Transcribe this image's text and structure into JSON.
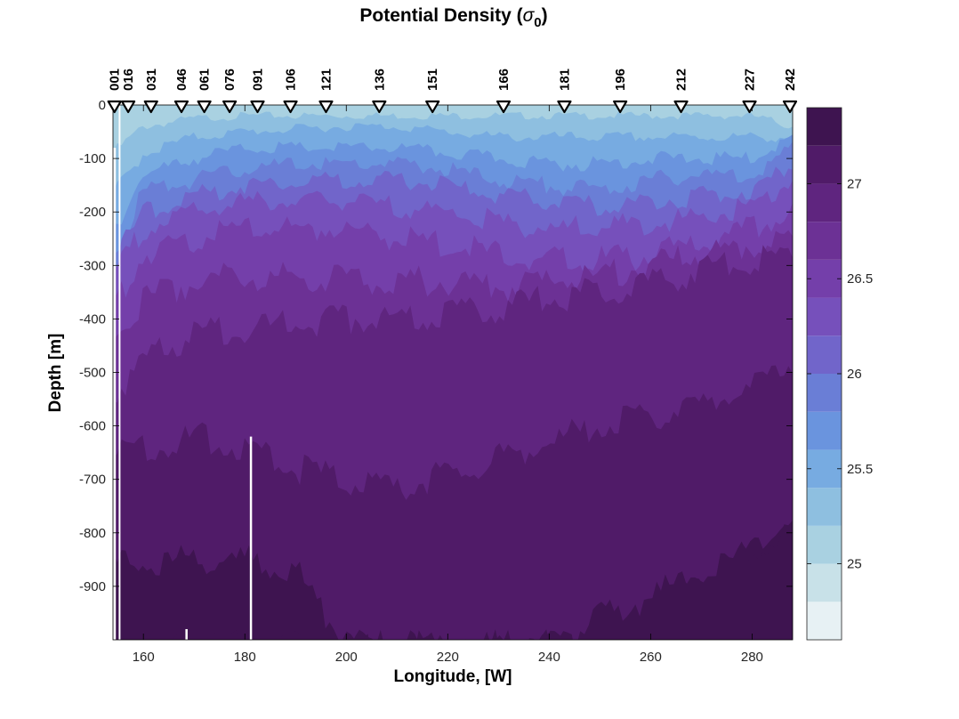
{
  "chart_data": {
    "type": "heatmap",
    "title": "Potential Density (",
    "title_symbol": "σ",
    "title_subscript": "0",
    "title_suffix": ")",
    "xlabel": "Longitude, [W]",
    "ylabel": "Depth [m]",
    "xlim": [
      154,
      288
    ],
    "ylim": [
      -1000,
      0
    ],
    "xticks": [
      160,
      180,
      200,
      220,
      240,
      260,
      280
    ],
    "yticks": [
      0,
      -100,
      -200,
      -300,
      -400,
      -500,
      -600,
      -700,
      -800,
      -900
    ],
    "colorbar": {
      "range": [
        24.6,
        27.4
      ],
      "ticks": [
        25,
        25.5,
        26,
        26.5,
        27
      ],
      "levels": [
        {
          "from": 24.6,
          "to": 24.8,
          "color": "#e7f1f4"
        },
        {
          "from": 24.8,
          "to": 25.0,
          "color": "#c8e1e8"
        },
        {
          "from": 25.0,
          "to": 25.2,
          "color": "#a9d1e1"
        },
        {
          "from": 25.2,
          "to": 25.4,
          "color": "#8ebfe0"
        },
        {
          "from": 25.4,
          "to": 25.6,
          "color": "#77abe1"
        },
        {
          "from": 25.6,
          "to": 25.8,
          "color": "#6a94de"
        },
        {
          "from": 25.8,
          "to": 26.0,
          "color": "#6a7ed6"
        },
        {
          "from": 26.0,
          "to": 26.2,
          "color": "#7165ca"
        },
        {
          "from": 26.2,
          "to": 26.4,
          "color": "#7650bb"
        },
        {
          "from": 26.4,
          "to": 26.6,
          "color": "#743faa"
        },
        {
          "from": 26.6,
          "to": 26.8,
          "color": "#6c3195"
        },
        {
          "from": 26.8,
          "to": 27.0,
          "color": "#5f257f"
        },
        {
          "from": 27.0,
          "to": 27.2,
          "color": "#501b68"
        },
        {
          "from": 27.2,
          "to": 27.4,
          "color": "#3e1450"
        }
      ]
    },
    "stations": [
      {
        "label": "001",
        "lon": 154.3
      },
      {
        "label": "016",
        "lon": 157.0
      },
      {
        "label": "031",
        "lon": 161.5
      },
      {
        "label": "046",
        "lon": 167.5
      },
      {
        "label": "061",
        "lon": 172.0
      },
      {
        "label": "076",
        "lon": 177.0
      },
      {
        "label": "091",
        "lon": 182.5
      },
      {
        "label": "106",
        "lon": 189.0
      },
      {
        "label": "121",
        "lon": 196.0
      },
      {
        "label": "136",
        "lon": 206.5
      },
      {
        "label": "151",
        "lon": 217.0
      },
      {
        "label": "166",
        "lon": 231.0
      },
      {
        "label": "181",
        "lon": 243.0
      },
      {
        "label": "196",
        "lon": 254.0
      },
      {
        "label": "212",
        "lon": 266.0
      },
      {
        "label": "227",
        "lon": 279.5
      },
      {
        "label": "242",
        "lon": 288.0
      }
    ],
    "isopycnal_depths": {
      "lon": [
        154,
        160,
        170,
        180,
        190,
        200,
        210,
        220,
        230,
        240,
        250,
        260,
        270,
        280,
        288
      ],
      "25.2": [
        -90,
        -40,
        -25,
        -20,
        -20,
        -20,
        -20,
        -20,
        -20,
        -20,
        -20,
        -20,
        -20,
        -20,
        -40
      ],
      "25.4": [
        -170,
        -90,
        -60,
        -50,
        -45,
        -40,
        -40,
        -50,
        -60,
        -60,
        -60,
        -60,
        -60,
        -60,
        -60
      ],
      "25.6": [
        -230,
        -130,
        -100,
        -80,
        -80,
        -80,
        -80,
        -90,
        -100,
        -110,
        -110,
        -100,
        -100,
        -100,
        -60
      ],
      "25.8": [
        -280,
        -160,
        -140,
        -120,
        -110,
        -110,
        -110,
        -120,
        -140,
        -150,
        -160,
        -140,
        -130,
        -130,
        -80
      ],
      "26.0": [
        -300,
        -200,
        -170,
        -150,
        -140,
        -140,
        -140,
        -150,
        -170,
        -180,
        -190,
        -180,
        -170,
        -160,
        -110
      ],
      "26.2": [
        -330,
        -230,
        -200,
        -180,
        -180,
        -180,
        -190,
        -200,
        -220,
        -230,
        -230,
        -220,
        -210,
        -190,
        -140
      ],
      "26.4": [
        -380,
        -280,
        -250,
        -230,
        -230,
        -230,
        -250,
        -260,
        -280,
        -290,
        -290,
        -280,
        -260,
        -230,
        -200
      ],
      "26.6": [
        -440,
        -360,
        -330,
        -320,
        -320,
        -320,
        -330,
        -330,
        -340,
        -330,
        -320,
        -300,
        -280,
        -260,
        -250
      ],
      "26.8": [
        -540,
        -480,
        -430,
        -420,
        -410,
        -400,
        -400,
        -390,
        -380,
        -360,
        -350,
        -330,
        -310,
        -290,
        -280
      ],
      "27.0": [
        -660,
        -640,
        -620,
        -640,
        -680,
        -700,
        -720,
        -690,
        -660,
        -630,
        -600,
        -580,
        -560,
        -530,
        -480
      ],
      "27.2": [
        -860,
        -860,
        -850,
        -850,
        -870,
        -1010,
        -1010,
        -1010,
        -1010,
        -1010,
        -1010,
        -960,
        -900,
        -830,
        -760
      ],
      "27.3": [
        -1010,
        -1010,
        -1010,
        -1010,
        -1010,
        -1010,
        -1010,
        -1010,
        -1010,
        -1010,
        -960,
        -920,
        -870,
        -840,
        -780
      ]
    },
    "grid": false,
    "legend": "colorbar-right"
  }
}
